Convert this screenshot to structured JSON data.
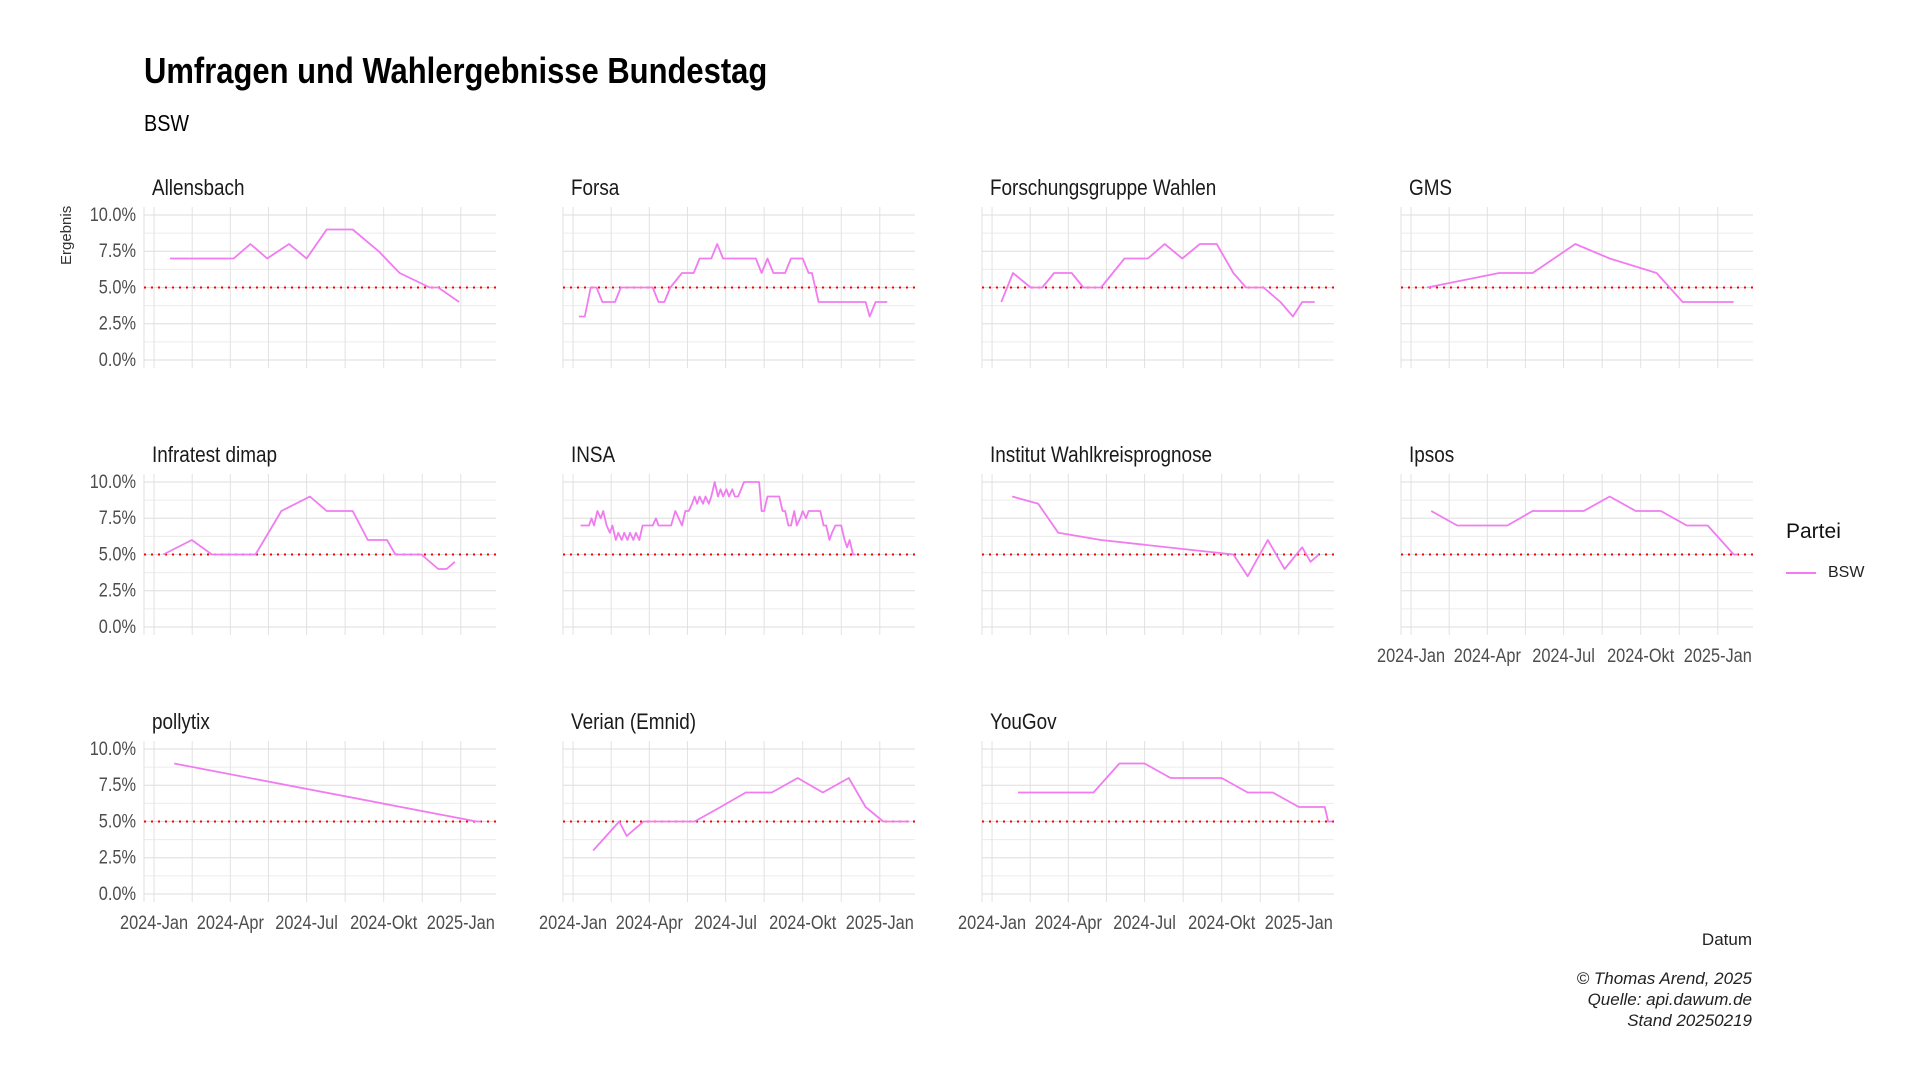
{
  "title": "Umfragen und Wahlergebnisse Bundestag",
  "subtitle": "BSW",
  "x_label": "Datum",
  "y_label": "Ergebnis",
  "legend": {
    "title": "Partei",
    "item": "BSW",
    "color": "#f07cf0"
  },
  "caption": {
    "line1": "© Thomas Arend, 2025",
    "line2": "Quelle: api.dawum.de",
    "line3": "Stand 20250219"
  },
  "threshold_color": "#ff0000",
  "chart_data": {
    "type": "line",
    "facet_layout": "4 columns × 3 rows",
    "x_ticks": [
      "2024-Jan",
      "2024-Apr",
      "2024-Jul",
      "2024-Okt",
      "2025-Jan"
    ],
    "y_ticks": [
      "0.0%",
      "2.5%",
      "5.0%",
      "7.5%",
      "10.0%"
    ],
    "ylim": [
      0,
      10
    ],
    "threshold": 5,
    "facets": [
      {
        "name": "Allensbach",
        "points": [
          [
            "2024-01-20",
            7
          ],
          [
            "2024-02-20",
            7
          ],
          [
            "2024-03-15",
            7
          ],
          [
            "2024-04-05",
            7
          ],
          [
            "2024-04-25",
            8
          ],
          [
            "2024-05-15",
            7
          ],
          [
            "2024-06-10",
            8
          ],
          [
            "2024-07-01",
            7
          ],
          [
            "2024-07-25",
            9
          ],
          [
            "2024-08-25",
            9
          ],
          [
            "2024-09-25",
            7.5
          ],
          [
            "2024-10-20",
            6
          ],
          [
            "2024-11-25",
            5
          ],
          [
            "2024-12-05",
            5
          ],
          [
            "2024-12-30",
            4
          ]
        ]
      },
      {
        "name": "Forsa",
        "points": [
          [
            "2024-01-08",
            3
          ],
          [
            "2024-01-15",
            3
          ],
          [
            "2024-01-22",
            5
          ],
          [
            "2024-01-29",
            5
          ],
          [
            "2024-02-05",
            4
          ],
          [
            "2024-02-20",
            4
          ],
          [
            "2024-02-27",
            5
          ],
          [
            "2024-03-20",
            5
          ],
          [
            "2024-04-05",
            5
          ],
          [
            "2024-04-12",
            4
          ],
          [
            "2024-04-19",
            4
          ],
          [
            "2024-04-26",
            5
          ],
          [
            "2024-05-10",
            6
          ],
          [
            "2024-05-24",
            6
          ],
          [
            "2024-05-31",
            7
          ],
          [
            "2024-06-14",
            7
          ],
          [
            "2024-06-21",
            8
          ],
          [
            "2024-06-28",
            7
          ],
          [
            "2024-07-20",
            7
          ],
          [
            "2024-08-06",
            7
          ],
          [
            "2024-08-13",
            6
          ],
          [
            "2024-08-20",
            7
          ],
          [
            "2024-08-27",
            6
          ],
          [
            "2024-09-10",
            6
          ],
          [
            "2024-09-17",
            7
          ],
          [
            "2024-10-01",
            7
          ],
          [
            "2024-10-08",
            6
          ],
          [
            "2024-10-12",
            6
          ],
          [
            "2024-10-20",
            4
          ],
          [
            "2024-11-20",
            4
          ],
          [
            "2024-12-15",
            4
          ],
          [
            "2024-12-20",
            3
          ],
          [
            "2024-12-27",
            4
          ],
          [
            "2025-01-10",
            4
          ]
        ]
      },
      {
        "name": "Forschungsgruppe Wahlen",
        "points": [
          [
            "2024-01-12",
            4
          ],
          [
            "2024-01-26",
            6
          ],
          [
            "2024-02-16",
            5
          ],
          [
            "2024-03-01",
            5
          ],
          [
            "2024-03-15",
            6
          ],
          [
            "2024-04-05",
            6
          ],
          [
            "2024-04-19",
            5
          ],
          [
            "2024-05-10",
            5
          ],
          [
            "2024-06-07",
            7
          ],
          [
            "2024-07-05",
            7
          ],
          [
            "2024-07-25",
            8
          ],
          [
            "2024-08-15",
            7
          ],
          [
            "2024-09-05",
            8
          ],
          [
            "2024-09-25",
            8
          ],
          [
            "2024-10-15",
            6
          ],
          [
            "2024-10-30",
            5
          ],
          [
            "2024-11-20",
            5
          ],
          [
            "2024-12-10",
            4
          ],
          [
            "2024-12-25",
            3
          ],
          [
            "2025-01-05",
            4
          ],
          [
            "2025-01-20",
            4
          ]
        ]
      },
      {
        "name": "GMS",
        "points": [
          [
            "2024-01-20",
            5
          ],
          [
            "2024-04-15",
            6
          ],
          [
            "2024-05-25",
            6
          ],
          [
            "2024-07-15",
            8
          ],
          [
            "2024-08-25",
            7
          ],
          [
            "2024-10-20",
            6
          ],
          [
            "2024-11-20",
            4
          ],
          [
            "2025-01-20",
            4
          ]
        ]
      },
      {
        "name": "Infratest dimap",
        "points": [
          [
            "2024-01-12",
            5
          ],
          [
            "2024-02-15",
            6
          ],
          [
            "2024-03-10",
            5
          ],
          [
            "2024-04-05",
            5
          ],
          [
            "2024-05-01",
            5
          ],
          [
            "2024-06-01",
            8
          ],
          [
            "2024-07-05",
            9
          ],
          [
            "2024-07-25",
            8
          ],
          [
            "2024-08-25",
            8
          ],
          [
            "2024-09-12",
            6
          ],
          [
            "2024-10-05",
            6
          ],
          [
            "2024-10-15",
            5
          ],
          [
            "2024-11-15",
            5
          ],
          [
            "2024-12-05",
            4
          ],
          [
            "2024-12-15",
            4
          ],
          [
            "2024-12-25",
            4.5
          ]
        ]
      },
      {
        "name": "INSA",
        "points": [
          [
            "2024-01-10",
            7
          ],
          [
            "2024-01-20",
            7
          ],
          [
            "2024-01-23",
            7.5
          ],
          [
            "2024-01-26",
            7
          ],
          [
            "2024-01-30",
            8
          ],
          [
            "2024-02-03",
            7.5
          ],
          [
            "2024-02-06",
            8
          ],
          [
            "2024-02-10",
            7
          ],
          [
            "2024-02-14",
            6.5
          ],
          [
            "2024-02-17",
            7
          ],
          [
            "2024-02-21",
            6
          ],
          [
            "2024-02-24",
            6.5
          ],
          [
            "2024-02-28",
            6
          ],
          [
            "2024-03-02",
            6.5
          ],
          [
            "2024-03-06",
            6
          ],
          [
            "2024-03-09",
            6.5
          ],
          [
            "2024-03-13",
            6
          ],
          [
            "2024-03-16",
            6.5
          ],
          [
            "2024-03-20",
            6
          ],
          [
            "2024-03-24",
            7
          ],
          [
            "2024-03-30",
            7
          ],
          [
            "2024-04-05",
            7
          ],
          [
            "2024-04-09",
            7.5
          ],
          [
            "2024-04-12",
            7
          ],
          [
            "2024-04-20",
            7
          ],
          [
            "2024-04-27",
            7
          ],
          [
            "2024-05-02",
            8
          ],
          [
            "2024-05-06",
            7.5
          ],
          [
            "2024-05-10",
            7
          ],
          [
            "2024-05-14",
            8
          ],
          [
            "2024-05-18",
            8
          ],
          [
            "2024-05-22",
            8.5
          ],
          [
            "2024-05-25",
            9
          ],
          [
            "2024-05-28",
            8.5
          ],
          [
            "2024-05-31",
            9
          ],
          [
            "2024-06-04",
            8.5
          ],
          [
            "2024-06-07",
            9
          ],
          [
            "2024-06-11",
            8.5
          ],
          [
            "2024-06-14",
            9
          ],
          [
            "2024-06-18",
            10
          ],
          [
            "2024-06-22",
            9
          ],
          [
            "2024-06-25",
            9.5
          ],
          [
            "2024-06-28",
            9
          ],
          [
            "2024-07-02",
            9.5
          ],
          [
            "2024-07-05",
            9
          ],
          [
            "2024-07-09",
            9.5
          ],
          [
            "2024-07-12",
            9
          ],
          [
            "2024-07-16",
            9
          ],
          [
            "2024-07-23",
            10
          ],
          [
            "2024-07-30",
            10
          ],
          [
            "2024-08-06",
            10
          ],
          [
            "2024-08-10",
            10
          ],
          [
            "2024-08-13",
            8
          ],
          [
            "2024-08-16",
            8
          ],
          [
            "2024-08-20",
            9
          ],
          [
            "2024-08-27",
            9
          ],
          [
            "2024-09-03",
            9
          ],
          [
            "2024-09-07",
            8
          ],
          [
            "2024-09-10",
            8
          ],
          [
            "2024-09-14",
            7
          ],
          [
            "2024-09-17",
            7
          ],
          [
            "2024-09-21",
            8
          ],
          [
            "2024-09-24",
            7
          ],
          [
            "2024-09-28",
            7.5
          ],
          [
            "2024-10-01",
            8
          ],
          [
            "2024-10-05",
            7.5
          ],
          [
            "2024-10-08",
            8
          ],
          [
            "2024-10-15",
            8
          ],
          [
            "2024-10-22",
            8
          ],
          [
            "2024-10-26",
            7
          ],
          [
            "2024-10-29",
            7
          ],
          [
            "2024-11-02",
            6
          ],
          [
            "2024-11-05",
            6.5
          ],
          [
            "2024-11-09",
            7
          ],
          [
            "2024-11-16",
            7
          ],
          [
            "2024-11-20",
            6
          ],
          [
            "2024-11-23",
            5.5
          ],
          [
            "2024-11-26",
            6
          ],
          [
            "2024-11-30",
            5
          ],
          [
            "2024-12-03",
            5
          ]
        ]
      },
      {
        "name": "Institut Wahlkreisprognose",
        "points": [
          [
            "2024-01-25",
            9
          ],
          [
            "2024-02-25",
            8.5
          ],
          [
            "2024-03-20",
            6.5
          ],
          [
            "2024-05-10",
            6
          ],
          [
            "2024-10-15",
            5
          ],
          [
            "2024-11-01",
            3.5
          ],
          [
            "2024-11-25",
            6
          ],
          [
            "2024-12-15",
            4
          ],
          [
            "2025-01-05",
            5.5
          ],
          [
            "2025-01-15",
            4.5
          ],
          [
            "2025-01-25",
            5
          ]
        ]
      },
      {
        "name": "Ipsos",
        "points": [
          [
            "2024-01-25",
            8
          ],
          [
            "2024-02-25",
            7
          ],
          [
            "2024-03-25",
            7
          ],
          [
            "2024-04-25",
            7
          ],
          [
            "2024-05-25",
            8
          ],
          [
            "2024-06-25",
            8
          ],
          [
            "2024-07-25",
            8
          ],
          [
            "2024-08-25",
            9
          ],
          [
            "2024-09-25",
            8
          ],
          [
            "2024-10-25",
            8
          ],
          [
            "2024-11-25",
            7
          ],
          [
            "2024-12-20",
            7
          ],
          [
            "2025-01-20",
            5
          ],
          [
            "2025-01-25",
            5
          ]
        ]
      },
      {
        "name": "pollytix",
        "points": [
          [
            "2024-01-25",
            9
          ],
          [
            "2025-01-20",
            5
          ],
          [
            "2025-01-25",
            5
          ]
        ]
      },
      {
        "name": "Verian (Emnid)",
        "points": [
          [
            "2024-01-25",
            3
          ],
          [
            "2024-02-25",
            5
          ],
          [
            "2024-03-05",
            4
          ],
          [
            "2024-03-25",
            5
          ],
          [
            "2024-04-25",
            5
          ],
          [
            "2024-05-25",
            5
          ],
          [
            "2024-06-25",
            6
          ],
          [
            "2024-07-25",
            7
          ],
          [
            "2024-08-25",
            7
          ],
          [
            "2024-09-25",
            8
          ],
          [
            "2024-10-25",
            7
          ],
          [
            "2024-11-25",
            8
          ],
          [
            "2024-12-15",
            6
          ],
          [
            "2025-01-05",
            5
          ],
          [
            "2025-01-25",
            5
          ],
          [
            "2025-02-05",
            5
          ]
        ]
      },
      {
        "name": "YouGov",
        "points": [
          [
            "2024-02-01",
            7
          ],
          [
            "2024-03-01",
            7
          ],
          [
            "2024-04-01",
            7
          ],
          [
            "2024-05-01",
            7
          ],
          [
            "2024-06-01",
            9
          ],
          [
            "2024-07-01",
            9
          ],
          [
            "2024-08-01",
            8
          ],
          [
            "2024-09-01",
            8
          ],
          [
            "2024-10-01",
            8
          ],
          [
            "2024-11-01",
            7
          ],
          [
            "2024-12-01",
            7
          ],
          [
            "2025-01-01",
            6
          ],
          [
            "2025-02-01",
            6
          ],
          [
            "2025-02-05",
            5
          ],
          [
            "2025-02-10",
            5
          ]
        ]
      }
    ]
  }
}
